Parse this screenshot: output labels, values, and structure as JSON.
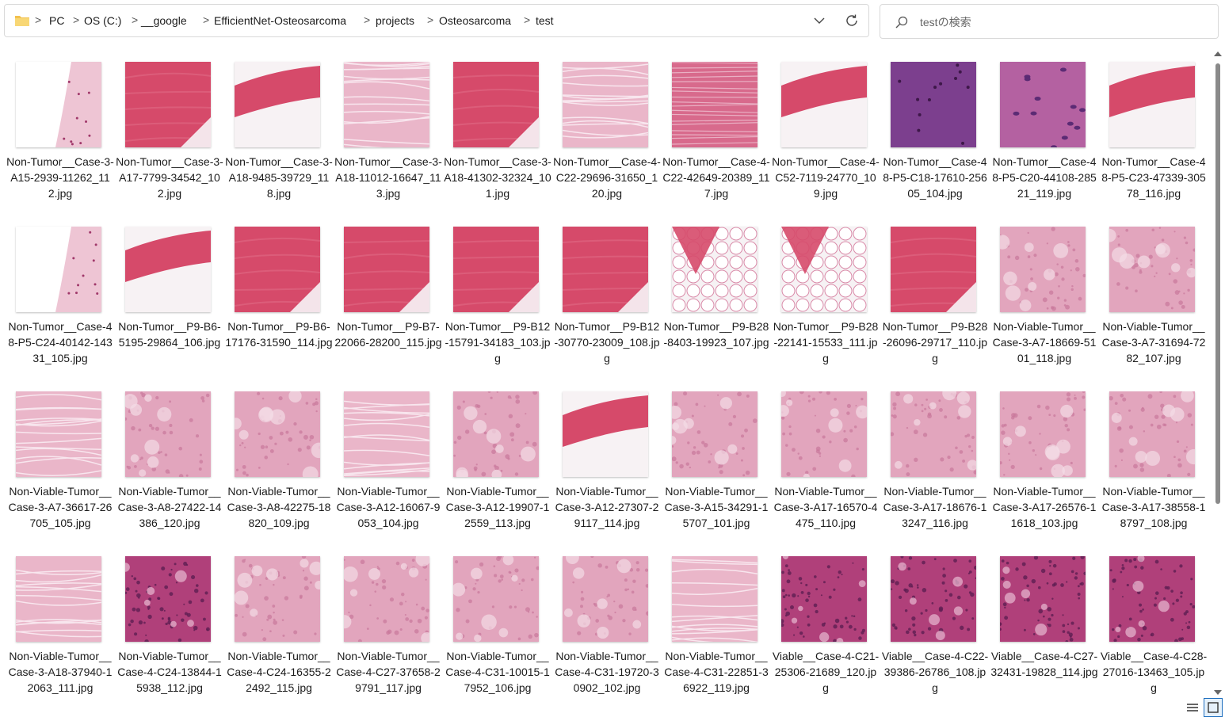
{
  "address_bar": {
    "crumbs": [
      "PC",
      "OS (C:)",
      "__google",
      "EfficientNet-Osteosarcoma",
      "projects",
      "Osteosarcoma",
      "test"
    ],
    "separator": ">"
  },
  "search": {
    "placeholder": "testの検索",
    "value": ""
  },
  "files": [
    {
      "name": "Non-Tumor__Case-3-A15-2939-11262_112.jpg",
      "style": "sparse"
    },
    {
      "name": "Non-Tumor__Case-3-A17-7799-34542_102.jpg",
      "style": "bone"
    },
    {
      "name": "Non-Tumor__Case-3-A18-9485-39729_118.jpg",
      "style": "band"
    },
    {
      "name": "Non-Tumor__Case-3-A18-11012-16647_113.jpg",
      "style": "fibrous"
    },
    {
      "name": "Non-Tumor__Case-3-A18-41302-32324_101.jpg",
      "style": "bone"
    },
    {
      "name": "Non-Tumor__Case-4-C22-29696-31650_120.jpg",
      "style": "fibrous"
    },
    {
      "name": "Non-Tumor__Case-4-C22-42649-20389_117.jpg",
      "style": "muscle"
    },
    {
      "name": "Non-Tumor__Case-4-C52-7119-24770_109.jpg",
      "style": "band"
    },
    {
      "name": "Non-Tumor__Case-48-P5-C18-17610-25605_104.jpg",
      "style": "purple"
    },
    {
      "name": "Non-Tumor__Case-48-P5-C20-44108-28521_119.jpg",
      "style": "cartilage"
    },
    {
      "name": "Non-Tumor__Case-48-P5-C23-47339-30578_116.jpg",
      "style": "band"
    },
    {
      "name": "Non-Tumor__Case-48-P5-C24-40142-14331_105.jpg",
      "style": "sparse"
    },
    {
      "name": "Non-Tumor__P9-B6-5195-29864_106.jpg",
      "style": "band"
    },
    {
      "name": "Non-Tumor__P9-B6-17176-31590_114.jpg",
      "style": "bone"
    },
    {
      "name": "Non-Tumor__P9-B7-22066-28200_115.jpg",
      "style": "bone"
    },
    {
      "name": "Non-Tumor__P9-B12-15791-34183_103.jpg",
      "style": "bone"
    },
    {
      "name": "Non-Tumor__P9-B12-30770-23009_108.jpg",
      "style": "bone"
    },
    {
      "name": "Non-Tumor__P9-B28-8403-19923_107.jpg",
      "style": "fat"
    },
    {
      "name": "Non-Tumor__P9-B28-22141-15533_111.jpg",
      "style": "fat"
    },
    {
      "name": "Non-Tumor__P9-B28-26096-29717_110.jpg",
      "style": "bone"
    },
    {
      "name": "Non-Viable-Tumor__Case-3-A7-18669-5101_118.jpg",
      "style": "necrotic"
    },
    {
      "name": "Non-Viable-Tumor__Case-3-A7-31694-7282_107.jpg",
      "style": "necrotic"
    },
    {
      "name": "Non-Viable-Tumor__Case-3-A7-36617-26705_105.jpg",
      "style": "fibrous"
    },
    {
      "name": "Non-Viable-Tumor__Case-3-A8-27422-14386_120.jpg",
      "style": "necrotic"
    },
    {
      "name": "Non-Viable-Tumor__Case-3-A8-42275-18820_109.jpg",
      "style": "necrotic"
    },
    {
      "name": "Non-Viable-Tumor__Case-3-A12-16067-9053_104.jpg",
      "style": "fibrous"
    },
    {
      "name": "Non-Viable-Tumor__Case-3-A12-19907-12559_113.jpg",
      "style": "necrotic"
    },
    {
      "name": "Non-Viable-Tumor__Case-3-A12-27307-29117_114.jpg",
      "style": "band"
    },
    {
      "name": "Non-Viable-Tumor__Case-3-A15-34291-15707_101.jpg",
      "style": "necrotic"
    },
    {
      "name": "Non-Viable-Tumor__Case-3-A17-16570-4475_110.jpg",
      "style": "necrotic"
    },
    {
      "name": "Non-Viable-Tumor__Case-3-A17-18676-13247_116.jpg",
      "style": "necrotic"
    },
    {
      "name": "Non-Viable-Tumor__Case-3-A17-26576-11618_103.jpg",
      "style": "necrotic"
    },
    {
      "name": "Non-Viable-Tumor__Case-3-A17-38558-18797_108.jpg",
      "style": "necrotic"
    },
    {
      "name": "Non-Viable-Tumor__Case-3-A18-37940-12063_111.jpg",
      "style": "fibrous"
    },
    {
      "name": "Non-Viable-Tumor__Case-4-C24-13844-15938_112.jpg",
      "style": "viable"
    },
    {
      "name": "Non-Viable-Tumor__Case-4-C24-16355-22492_115.jpg",
      "style": "necrotic"
    },
    {
      "name": "Non-Viable-Tumor__Case-4-C27-37658-29791_117.jpg",
      "style": "necrotic"
    },
    {
      "name": "Non-Viable-Tumor__Case-4-C31-10015-17952_106.jpg",
      "style": "necrotic"
    },
    {
      "name": "Non-Viable-Tumor__Case-4-C31-19720-30902_102.jpg",
      "style": "necrotic"
    },
    {
      "name": "Non-Viable-Tumor__Case-4-C31-22851-36922_119.jpg",
      "style": "fibrous"
    },
    {
      "name": "Viable__Case-4-C21-25306-21689_120.jpg",
      "style": "viable"
    },
    {
      "name": "Viable__Case-4-C22-39386-26786_108.jpg",
      "style": "viable"
    },
    {
      "name": "Viable__Case-4-C27-32431-19828_114.jpg",
      "style": "viable"
    },
    {
      "name": "Viable__Case-4-C28-27016-13463_105.jpg",
      "style": "viable"
    }
  ],
  "colors": {
    "bone": "#d64a6a",
    "fibrous": "#eab6c9",
    "necrotic": "#e2a5bd",
    "viable": "#b0407a",
    "purple": "#7c3f8e",
    "accent": "#1f6fbf"
  }
}
